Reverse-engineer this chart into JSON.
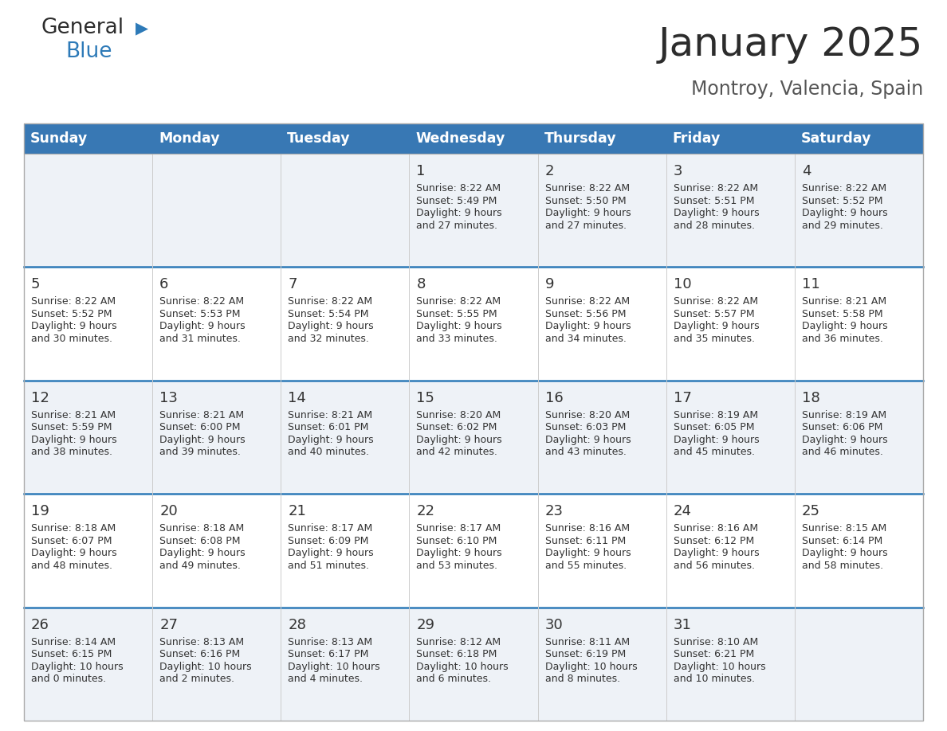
{
  "title": "January 2025",
  "subtitle": "Montroy, Valencia, Spain",
  "header_bg": "#3878b4",
  "header_text_color": "#ffffff",
  "row_bg": [
    "#eef2f7",
    "#ffffff"
  ],
  "days_of_week": [
    "Sunday",
    "Monday",
    "Tuesday",
    "Wednesday",
    "Thursday",
    "Friday",
    "Saturday"
  ],
  "calendar_data": [
    [
      {
        "day": "",
        "sunrise": "",
        "sunset": "",
        "daylight": ""
      },
      {
        "day": "",
        "sunrise": "",
        "sunset": "",
        "daylight": ""
      },
      {
        "day": "",
        "sunrise": "",
        "sunset": "",
        "daylight": ""
      },
      {
        "day": "1",
        "sunrise": "8:22 AM",
        "sunset": "5:49 PM",
        "daylight_h": "9 hours",
        "daylight_m": "and 27 minutes."
      },
      {
        "day": "2",
        "sunrise": "8:22 AM",
        "sunset": "5:50 PM",
        "daylight_h": "9 hours",
        "daylight_m": "and 27 minutes."
      },
      {
        "day": "3",
        "sunrise": "8:22 AM",
        "sunset": "5:51 PM",
        "daylight_h": "9 hours",
        "daylight_m": "and 28 minutes."
      },
      {
        "day": "4",
        "sunrise": "8:22 AM",
        "sunset": "5:52 PM",
        "daylight_h": "9 hours",
        "daylight_m": "and 29 minutes."
      }
    ],
    [
      {
        "day": "5",
        "sunrise": "8:22 AM",
        "sunset": "5:52 PM",
        "daylight_h": "9 hours",
        "daylight_m": "and 30 minutes."
      },
      {
        "day": "6",
        "sunrise": "8:22 AM",
        "sunset": "5:53 PM",
        "daylight_h": "9 hours",
        "daylight_m": "and 31 minutes."
      },
      {
        "day": "7",
        "sunrise": "8:22 AM",
        "sunset": "5:54 PM",
        "daylight_h": "9 hours",
        "daylight_m": "and 32 minutes."
      },
      {
        "day": "8",
        "sunrise": "8:22 AM",
        "sunset": "5:55 PM",
        "daylight_h": "9 hours",
        "daylight_m": "and 33 minutes."
      },
      {
        "day": "9",
        "sunrise": "8:22 AM",
        "sunset": "5:56 PM",
        "daylight_h": "9 hours",
        "daylight_m": "and 34 minutes."
      },
      {
        "day": "10",
        "sunrise": "8:22 AM",
        "sunset": "5:57 PM",
        "daylight_h": "9 hours",
        "daylight_m": "and 35 minutes."
      },
      {
        "day": "11",
        "sunrise": "8:21 AM",
        "sunset": "5:58 PM",
        "daylight_h": "9 hours",
        "daylight_m": "and 36 minutes."
      }
    ],
    [
      {
        "day": "12",
        "sunrise": "8:21 AM",
        "sunset": "5:59 PM",
        "daylight_h": "9 hours",
        "daylight_m": "and 38 minutes."
      },
      {
        "day": "13",
        "sunrise": "8:21 AM",
        "sunset": "6:00 PM",
        "daylight_h": "9 hours",
        "daylight_m": "and 39 minutes."
      },
      {
        "day": "14",
        "sunrise": "8:21 AM",
        "sunset": "6:01 PM",
        "daylight_h": "9 hours",
        "daylight_m": "and 40 minutes."
      },
      {
        "day": "15",
        "sunrise": "8:20 AM",
        "sunset": "6:02 PM",
        "daylight_h": "9 hours",
        "daylight_m": "and 42 minutes."
      },
      {
        "day": "16",
        "sunrise": "8:20 AM",
        "sunset": "6:03 PM",
        "daylight_h": "9 hours",
        "daylight_m": "and 43 minutes."
      },
      {
        "day": "17",
        "sunrise": "8:19 AM",
        "sunset": "6:05 PM",
        "daylight_h": "9 hours",
        "daylight_m": "and 45 minutes."
      },
      {
        "day": "18",
        "sunrise": "8:19 AM",
        "sunset": "6:06 PM",
        "daylight_h": "9 hours",
        "daylight_m": "and 46 minutes."
      }
    ],
    [
      {
        "day": "19",
        "sunrise": "8:18 AM",
        "sunset": "6:07 PM",
        "daylight_h": "9 hours",
        "daylight_m": "and 48 minutes."
      },
      {
        "day": "20",
        "sunrise": "8:18 AM",
        "sunset": "6:08 PM",
        "daylight_h": "9 hours",
        "daylight_m": "and 49 minutes."
      },
      {
        "day": "21",
        "sunrise": "8:17 AM",
        "sunset": "6:09 PM",
        "daylight_h": "9 hours",
        "daylight_m": "and 51 minutes."
      },
      {
        "day": "22",
        "sunrise": "8:17 AM",
        "sunset": "6:10 PM",
        "daylight_h": "9 hours",
        "daylight_m": "and 53 minutes."
      },
      {
        "day": "23",
        "sunrise": "8:16 AM",
        "sunset": "6:11 PM",
        "daylight_h": "9 hours",
        "daylight_m": "and 55 minutes."
      },
      {
        "day": "24",
        "sunrise": "8:16 AM",
        "sunset": "6:12 PM",
        "daylight_h": "9 hours",
        "daylight_m": "and 56 minutes."
      },
      {
        "day": "25",
        "sunrise": "8:15 AM",
        "sunset": "6:14 PM",
        "daylight_h": "9 hours",
        "daylight_m": "and 58 minutes."
      }
    ],
    [
      {
        "day": "26",
        "sunrise": "8:14 AM",
        "sunset": "6:15 PM",
        "daylight_h": "10 hours",
        "daylight_m": "and 0 minutes."
      },
      {
        "day": "27",
        "sunrise": "8:13 AM",
        "sunset": "6:16 PM",
        "daylight_h": "10 hours",
        "daylight_m": "and 2 minutes."
      },
      {
        "day": "28",
        "sunrise": "8:13 AM",
        "sunset": "6:17 PM",
        "daylight_h": "10 hours",
        "daylight_m": "and 4 minutes."
      },
      {
        "day": "29",
        "sunrise": "8:12 AM",
        "sunset": "6:18 PM",
        "daylight_h": "10 hours",
        "daylight_m": "and 6 minutes."
      },
      {
        "day": "30",
        "sunrise": "8:11 AM",
        "sunset": "6:19 PM",
        "daylight_h": "10 hours",
        "daylight_m": "and 8 minutes."
      },
      {
        "day": "31",
        "sunrise": "8:10 AM",
        "sunset": "6:21 PM",
        "daylight_h": "10 hours",
        "daylight_m": "and 10 minutes."
      },
      {
        "day": "",
        "sunrise": "",
        "sunset": "",
        "daylight_h": "",
        "daylight_m": ""
      }
    ]
  ],
  "logo_general_color": "#2c2c2c",
  "logo_blue_color": "#2d7ab8",
  "title_color": "#2c2c2c",
  "subtitle_color": "#555555",
  "cell_text_color": "#333333",
  "divider_color": "#2d7ab8",
  "border_color": "#aaaaaa",
  "grid_color": "#cccccc"
}
